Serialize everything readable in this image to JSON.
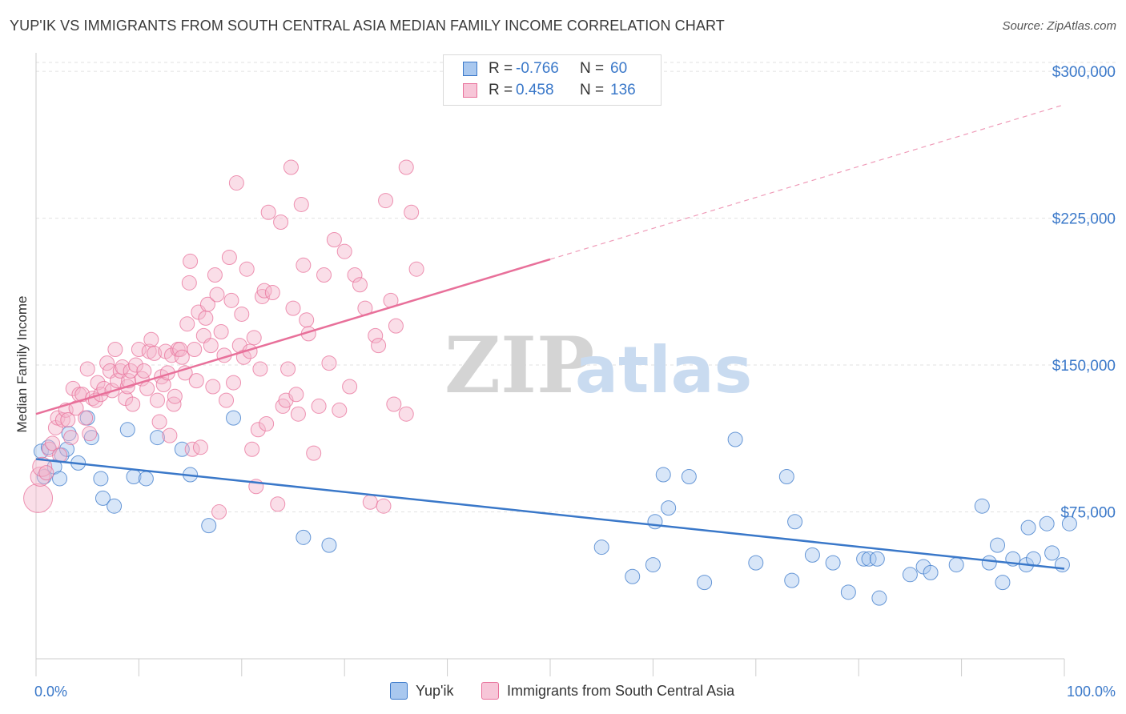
{
  "title": "YUP'IK VS IMMIGRANTS FROM SOUTH CENTRAL ASIA MEDIAN FAMILY INCOME CORRELATION CHART",
  "source": "Source: ZipAtlas.com",
  "watermark": {
    "zip": "ZIP",
    "atlas": "atlas"
  },
  "colors": {
    "blue": "#3a78c9",
    "blue_fill": "#a9c8ef",
    "pink": "#e8709a",
    "pink_fill": "#f4b6cc",
    "grid": "#e2e2e2",
    "label_blue": "#3a78c9"
  },
  "legend": {
    "rows": [
      {
        "r_label": "R =",
        "r_value": "-0.766",
        "n_label": "N =",
        "n_value": "60",
        "color": "blue"
      },
      {
        "r_label": "R =",
        "r_value": "0.458",
        "n_label": "N =",
        "n_value": "136",
        "color": "pink"
      }
    ]
  },
  "bottom_legend": {
    "series1": "Yup'ik",
    "series2": "Immigrants from South Central Asia"
  },
  "chart_data": {
    "type": "scatter",
    "ylabel": "Median Family Income",
    "xlabel": "",
    "x_tick_labels": [
      "0.0%",
      "100.0%"
    ],
    "y_tick_labels": [
      "$75,000",
      "$150,000",
      "$225,000",
      "$300,000"
    ],
    "y_ticks": [
      75000,
      150000,
      225000,
      300000
    ],
    "xlim": [
      0,
      100
    ],
    "ylim": [
      0,
      307000
    ],
    "grid": true,
    "series": [
      {
        "name": "Yup'ik",
        "color": "blue",
        "trend": {
          "x0": 0,
          "y0": 102000,
          "x1": 100,
          "y1": 46000,
          "dashed_to": 100
        },
        "points": [
          [
            0.5,
            106000
          ],
          [
            1.2,
            108000
          ],
          [
            2.5,
            104000
          ],
          [
            3.0,
            107000
          ],
          [
            1.8,
            98000
          ],
          [
            2.3,
            92000
          ],
          [
            3.2,
            115000
          ],
          [
            4.1,
            100000
          ],
          [
            5.0,
            123000
          ],
          [
            5.4,
            113000
          ],
          [
            6.3,
            92000
          ],
          [
            6.5,
            82000
          ],
          [
            7.6,
            78000
          ],
          [
            8.9,
            117000
          ],
          [
            9.5,
            93000
          ],
          [
            10.7,
            92000
          ],
          [
            11.8,
            113000
          ],
          [
            14.2,
            107000
          ],
          [
            15.0,
            94000
          ],
          [
            16.8,
            68000
          ],
          [
            19.2,
            123000
          ],
          [
            26.0,
            62000
          ],
          [
            28.5,
            58000
          ],
          [
            55.0,
            57000
          ],
          [
            58.0,
            42000
          ],
          [
            60.0,
            48000
          ],
          [
            60.2,
            70000
          ],
          [
            61.0,
            94000
          ],
          [
            61.5,
            77000
          ],
          [
            63.5,
            93000
          ],
          [
            65.0,
            39000
          ],
          [
            68.0,
            112000
          ],
          [
            70.0,
            49000
          ],
          [
            73.5,
            40000
          ],
          [
            73.0,
            93000
          ],
          [
            73.8,
            70000
          ],
          [
            75.5,
            53000
          ],
          [
            77.5,
            49000
          ],
          [
            79.0,
            34000
          ],
          [
            80.5,
            51000
          ],
          [
            81.0,
            51000
          ],
          [
            82.0,
            31000
          ],
          [
            81.8,
            51000
          ],
          [
            85.0,
            43000
          ],
          [
            86.3,
            47000
          ],
          [
            87.0,
            44000
          ],
          [
            89.5,
            48000
          ],
          [
            92.0,
            78000
          ],
          [
            92.7,
            49000
          ],
          [
            93.5,
            58000
          ],
          [
            94.0,
            39000
          ],
          [
            95.0,
            51000
          ],
          [
            96.3,
            48000
          ],
          [
            96.5,
            67000
          ],
          [
            97.0,
            51000
          ],
          [
            98.3,
            69000
          ],
          [
            98.8,
            54000
          ],
          [
            99.8,
            48000
          ],
          [
            100.5,
            69000
          ],
          [
            0.8,
            93000
          ]
        ]
      },
      {
        "name": "Immigrants from South Central Asia",
        "color": "pink",
        "trend": {
          "x0": 0,
          "y0": 125000,
          "x1": 50,
          "y1": 204000,
          "dashed_to": 100,
          "y_dashed_end": 283000
        },
        "points": [
          [
            0.2,
            82000
          ],
          [
            0.4,
            93000
          ],
          [
            0.6,
            98000
          ],
          [
            1.0,
            95000
          ],
          [
            1.3,
            107000
          ],
          [
            1.6,
            110000
          ],
          [
            1.9,
            118000
          ],
          [
            2.1,
            123000
          ],
          [
            2.3,
            104000
          ],
          [
            2.6,
            122000
          ],
          [
            2.9,
            127000
          ],
          [
            3.1,
            122000
          ],
          [
            3.4,
            113000
          ],
          [
            3.6,
            138000
          ],
          [
            3.9,
            128000
          ],
          [
            4.2,
            135000
          ],
          [
            4.5,
            135000
          ],
          [
            4.8,
            123000
          ],
          [
            5.0,
            148000
          ],
          [
            5.2,
            115000
          ],
          [
            5.5,
            133000
          ],
          [
            5.8,
            132000
          ],
          [
            6.0,
            141000
          ],
          [
            6.3,
            135000
          ],
          [
            6.6,
            138000
          ],
          [
            6.9,
            151000
          ],
          [
            7.2,
            147000
          ],
          [
            7.4,
            137000
          ],
          [
            7.7,
            158000
          ],
          [
            7.9,
            142000
          ],
          [
            8.2,
            147000
          ],
          [
            8.4,
            149000
          ],
          [
            8.7,
            133000
          ],
          [
            8.9,
            139000
          ],
          [
            9.0,
            142000
          ],
          [
            9.2,
            147000
          ],
          [
            9.4,
            130000
          ],
          [
            9.7,
            150000
          ],
          [
            10.0,
            158000
          ],
          [
            10.3,
            143000
          ],
          [
            10.5,
            147000
          ],
          [
            10.8,
            138000
          ],
          [
            11.0,
            157000
          ],
          [
            11.2,
            163000
          ],
          [
            11.5,
            156000
          ],
          [
            11.8,
            132000
          ],
          [
            12.0,
            121000
          ],
          [
            12.2,
            144000
          ],
          [
            12.4,
            140000
          ],
          [
            12.6,
            157000
          ],
          [
            12.8,
            146000
          ],
          [
            13.0,
            114000
          ],
          [
            13.2,
            155000
          ],
          [
            13.4,
            130000
          ],
          [
            13.5,
            134000
          ],
          [
            13.8,
            158000
          ],
          [
            14.0,
            158000
          ],
          [
            14.2,
            154000
          ],
          [
            14.5,
            146000
          ],
          [
            14.7,
            171000
          ],
          [
            14.9,
            192000
          ],
          [
            15.0,
            203000
          ],
          [
            15.2,
            107000
          ],
          [
            15.4,
            158000
          ],
          [
            15.6,
            142000
          ],
          [
            15.8,
            177000
          ],
          [
            16.0,
            108000
          ],
          [
            16.3,
            165000
          ],
          [
            16.5,
            174000
          ],
          [
            16.7,
            181000
          ],
          [
            17.0,
            160000
          ],
          [
            17.2,
            139000
          ],
          [
            17.4,
            196000
          ],
          [
            17.6,
            186000
          ],
          [
            17.8,
            75000
          ],
          [
            18.0,
            167000
          ],
          [
            18.3,
            155000
          ],
          [
            18.5,
            132000
          ],
          [
            18.8,
            205000
          ],
          [
            19.0,
            183000
          ],
          [
            19.2,
            141000
          ],
          [
            19.5,
            243000
          ],
          [
            19.8,
            160000
          ],
          [
            20.0,
            176000
          ],
          [
            20.2,
            154000
          ],
          [
            20.5,
            199000
          ],
          [
            20.8,
            157000
          ],
          [
            21.0,
            107000
          ],
          [
            21.2,
            164000
          ],
          [
            21.4,
            88000
          ],
          [
            21.6,
            117000
          ],
          [
            21.8,
            148000
          ],
          [
            22.0,
            185000
          ],
          [
            22.2,
            188000
          ],
          [
            22.4,
            120000
          ],
          [
            22.6,
            228000
          ],
          [
            23.0,
            187000
          ],
          [
            23.5,
            79000
          ],
          [
            23.8,
            223000
          ],
          [
            24.0,
            129000
          ],
          [
            24.3,
            132000
          ],
          [
            24.5,
            148000
          ],
          [
            24.8,
            251000
          ],
          [
            25.0,
            179000
          ],
          [
            25.3,
            135000
          ],
          [
            25.5,
            125000
          ],
          [
            25.8,
            232000
          ],
          [
            26.0,
            201000
          ],
          [
            26.3,
            173000
          ],
          [
            26.5,
            166000
          ],
          [
            27.0,
            105000
          ],
          [
            27.5,
            129000
          ],
          [
            28.0,
            196000
          ],
          [
            28.5,
            151000
          ],
          [
            29.0,
            214000
          ],
          [
            29.5,
            127000
          ],
          [
            30.0,
            208000
          ],
          [
            30.5,
            139000
          ],
          [
            31.0,
            196000
          ],
          [
            31.5,
            191000
          ],
          [
            32.0,
            179000
          ],
          [
            32.5,
            80000
          ],
          [
            33.0,
            165000
          ],
          [
            33.3,
            160000
          ],
          [
            33.8,
            78000
          ],
          [
            34.0,
            234000
          ],
          [
            34.5,
            183000
          ],
          [
            34.8,
            130000
          ],
          [
            35.0,
            170000
          ],
          [
            36.0,
            125000
          ],
          [
            36.5,
            228000
          ],
          [
            37.0,
            199000
          ],
          [
            36.0,
            251000
          ]
        ]
      }
    ]
  }
}
